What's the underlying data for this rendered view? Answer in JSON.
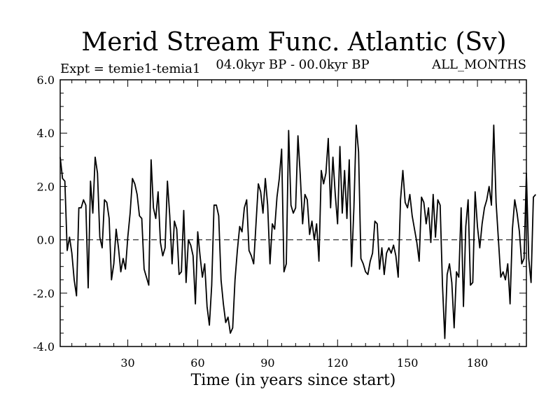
{
  "chart_data": {
    "type": "line",
    "title": "Merid Stream Func. Atlantic (Sv)",
    "subtitle_left": "Expt = temie1-temia1",
    "subtitle_center": "04.0kyr BP - 00.0kyr BP",
    "subtitle_right": "ALL_MONTHS",
    "xlabel": "Time (in years since start)",
    "ylabel": "",
    "xlim": [
      1,
      201
    ],
    "ylim": [
      -4.0,
      6.0
    ],
    "x_ticks": [
      30,
      60,
      90,
      120,
      150,
      180
    ],
    "y_ticks": [
      -4.0,
      -2.0,
      0.0,
      2.0,
      4.0,
      6.0
    ],
    "y_tick_labels": [
      "-4.0",
      "-2.0",
      "0.0",
      "2.0",
      "4.0",
      "6.0"
    ],
    "reference_line": {
      "y": 0.0,
      "style": "dashed"
    },
    "colors": {
      "line": "#000000",
      "axis": "#000000",
      "background": "#ffffff"
    },
    "series": [
      {
        "name": "Merid Stream Func. Atlantic",
        "x_start": 1,
        "x_step": 1,
        "values": [
          3.1,
          2.3,
          2.2,
          -0.4,
          0.1,
          -0.5,
          -1.5,
          -2.1,
          1.2,
          1.2,
          1.5,
          1.3,
          -1.8,
          2.2,
          1.0,
          3.1,
          2.5,
          0.1,
          -0.3,
          1.5,
          1.4,
          0.8,
          -1.5,
          -0.9,
          0.4,
          -0.3,
          -1.2,
          -0.7,
          -1.1,
          0.1,
          1.0,
          2.3,
          2.1,
          1.7,
          0.9,
          0.8,
          -1.1,
          -1.4,
          -1.7,
          3.0,
          1.2,
          0.8,
          1.8,
          -0.1,
          -0.6,
          -0.3,
          2.2,
          0.9,
          -0.9,
          0.7,
          0.4,
          -1.3,
          -1.2,
          1.1,
          -1.6,
          0.0,
          -0.2,
          -0.6,
          -2.4,
          0.3,
          -0.6,
          -1.4,
          -0.9,
          -2.5,
          -3.2,
          -1.7,
          1.3,
          1.3,
          0.9,
          -1.5,
          -2.4,
          -3.1,
          -2.9,
          -3.5,
          -3.3,
          -1.5,
          -0.4,
          0.5,
          0.3,
          1.2,
          1.5,
          -0.4,
          -0.6,
          -0.9,
          0.6,
          2.1,
          1.8,
          1.0,
          2.3,
          1.3,
          -0.9,
          0.6,
          0.4,
          1.6,
          2.3,
          3.4,
          -1.2,
          -0.9,
          4.1,
          1.3,
          1.0,
          1.2,
          3.9,
          2.4,
          0.6,
          1.7,
          1.5,
          0.2,
          0.7,
          0.0,
          0.6,
          -0.8,
          2.6,
          2.1,
          2.5,
          3.8,
          1.2,
          3.1,
          1.7,
          0.6,
          3.5,
          1.0,
          2.6,
          0.8,
          3.0,
          -1.0,
          1.2,
          4.3,
          3.3,
          -0.7,
          -0.9,
          -1.2,
          -1.3,
          -0.8,
          -0.5,
          0.7,
          0.6,
          -1.1,
          -0.3,
          -1.3,
          -0.5,
          -0.3,
          -0.5,
          -0.2,
          -0.6,
          -1.4,
          1.5,
          2.6,
          1.4,
          1.2,
          1.7,
          0.9,
          0.4,
          -0.1,
          -0.8,
          1.6,
          1.4,
          0.6,
          1.2,
          -0.1,
          1.7,
          0.1,
          1.5,
          1.3,
          -1.7,
          -3.7,
          -1.3,
          -0.9,
          -1.6,
          -3.3,
          -1.2,
          -1.4,
          1.2,
          -2.5,
          0.5,
          1.5,
          -1.7,
          -1.6,
          1.8,
          0.5,
          -0.3,
          0.6,
          1.2,
          1.5,
          2.0,
          1.3,
          4.3,
          1.4,
          0.0,
          -1.4,
          -1.2,
          -1.5,
          -0.9,
          -2.4,
          0.4,
          1.5,
          1.0,
          0.3,
          -0.9,
          -0.7,
          2.5,
          -0.7,
          -1.6,
          1.6,
          1.7
        ]
      }
    ]
  }
}
